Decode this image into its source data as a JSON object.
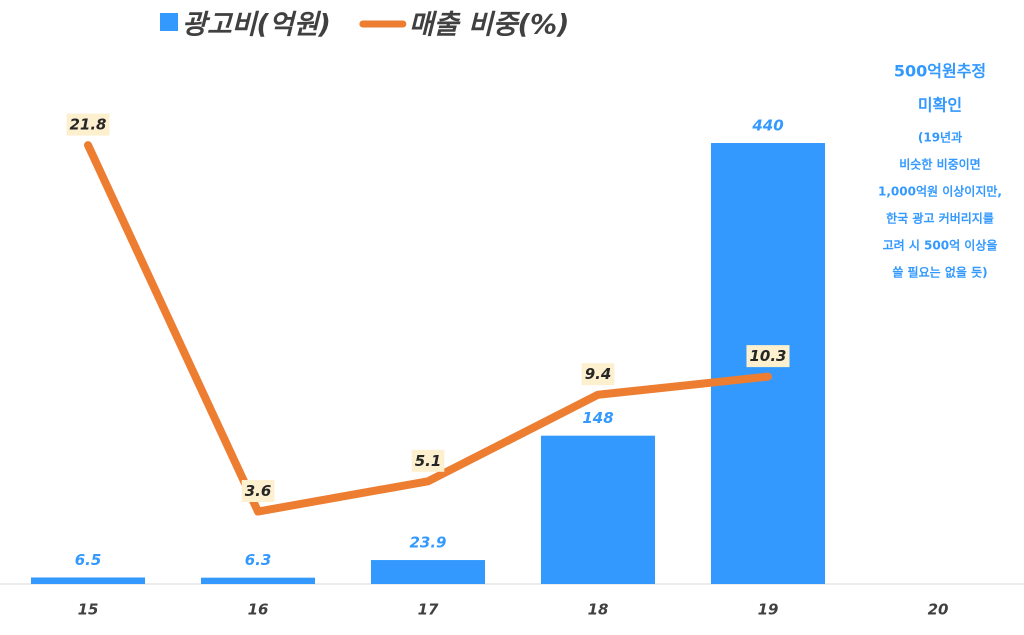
{
  "chart_data": {
    "type": "bar_line",
    "categories": [
      "15",
      "16",
      "17",
      "18",
      "19",
      "20"
    ],
    "series": [
      {
        "name": "광고비(억원)",
        "type": "bar",
        "color": "#3399ff",
        "values": [
          6.5,
          6.3,
          23.9,
          148,
          440,
          null
        ]
      },
      {
        "name": "매출 비중(%)",
        "type": "line",
        "axis": "y2",
        "color": "#ed7d31",
        "values": [
          21.8,
          3.6,
          5.1,
          9.4,
          10.3,
          null
        ]
      }
    ],
    "ylim": [
      0,
      450
    ],
    "y2lim": [
      0,
      22.4
    ],
    "annotation": {
      "title": [
        "500억원추정",
        "미확인"
      ],
      "lines": [
        "(19년과",
        "비슷한 비중이면",
        "1,000억원 이상이지만,",
        "한국 광고 커버리지를",
        "고려 시 500억 이상을",
        "쓸 필요는 없을 듯)"
      ]
    }
  }
}
